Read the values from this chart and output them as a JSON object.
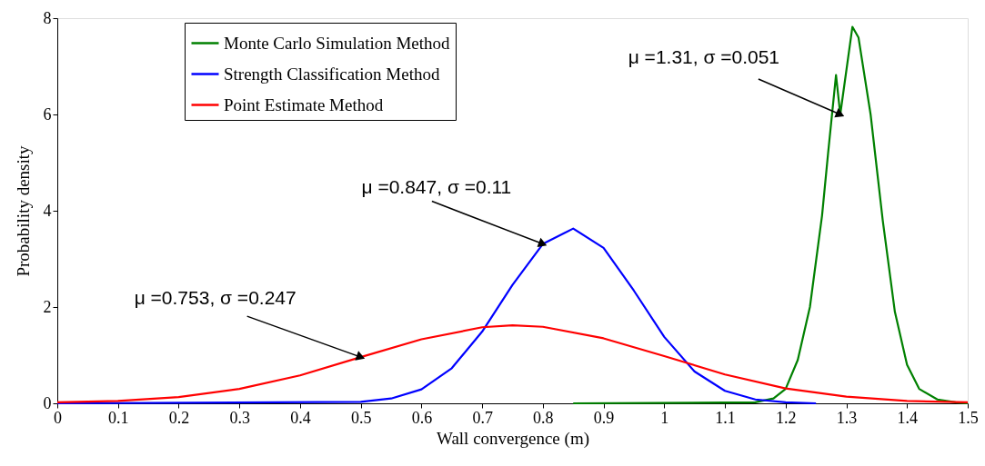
{
  "chart_data": {
    "type": "line",
    "xlabel": "Wall convergence (m)",
    "ylabel": "Probability density",
    "xlim": [
      0,
      1.5
    ],
    "xticks": [
      0,
      0.1,
      0.2,
      0.3,
      0.4,
      0.5,
      0.6,
      0.7,
      0.8,
      0.9,
      1,
      1.1,
      1.2,
      1.3,
      1.4,
      1.5
    ],
    "ylim": [
      0,
      8
    ],
    "yticks": [
      0,
      2,
      4,
      6,
      8
    ],
    "grid": false,
    "legend": "top left",
    "marker": "none",
    "line_style": "solid",
    "series": [
      {
        "name": "Monte Carlo Simulation Method",
        "color": "#008000",
        "x": [
          0.85,
          1.15,
          1.18,
          1.2,
          1.22,
          1.24,
          1.26,
          1.27,
          1.283,
          1.29,
          1.31,
          1.32,
          1.34,
          1.36,
          1.38,
          1.4,
          1.42,
          1.45,
          1.48,
          1.5
        ],
        "values": [
          0,
          0.02,
          0.1,
          0.3,
          0.9,
          2.0,
          3.9,
          5.2,
          6.82,
          6.0,
          7.82,
          7.6,
          6.0,
          3.8,
          1.9,
          0.8,
          0.3,
          0.08,
          0.02,
          0
        ]
      },
      {
        "name": "Strength Classification Method",
        "color": "#0000ff",
        "x": [
          0,
          0.5,
          0.55,
          0.6,
          0.65,
          0.7,
          0.75,
          0.8,
          0.85,
          0.9,
          0.95,
          1.0,
          1.05,
          1.1,
          1.15,
          1.2,
          1.25
        ],
        "values": [
          0,
          0.03,
          0.1,
          0.29,
          0.73,
          1.49,
          2.46,
          3.31,
          3.63,
          3.23,
          2.34,
          1.38,
          0.66,
          0.26,
          0.08,
          0.02,
          0
        ]
      },
      {
        "name": "Point Estimate Method",
        "color": "#ff0000",
        "x": [
          0,
          0.1,
          0.2,
          0.3,
          0.4,
          0.5,
          0.6,
          0.7,
          0.75,
          0.8,
          0.9,
          1.0,
          1.1,
          1.2,
          1.3,
          1.4,
          1.5
        ],
        "values": [
          0.02,
          0.05,
          0.13,
          0.3,
          0.58,
          0.96,
          1.33,
          1.58,
          1.62,
          1.59,
          1.35,
          0.98,
          0.6,
          0.31,
          0.14,
          0.05,
          0.02
        ]
      }
    ],
    "annotations": [
      {
        "text": "μ =0.753, σ =0.247",
        "x": 0.5,
        "y": 0.96
      },
      {
        "text": "μ =0.847, σ =0.11",
        "x": 0.8,
        "y": 3.31
      },
      {
        "text": "μ =1.31, σ =0.051",
        "x": 1.29,
        "y": 6.0
      }
    ]
  }
}
